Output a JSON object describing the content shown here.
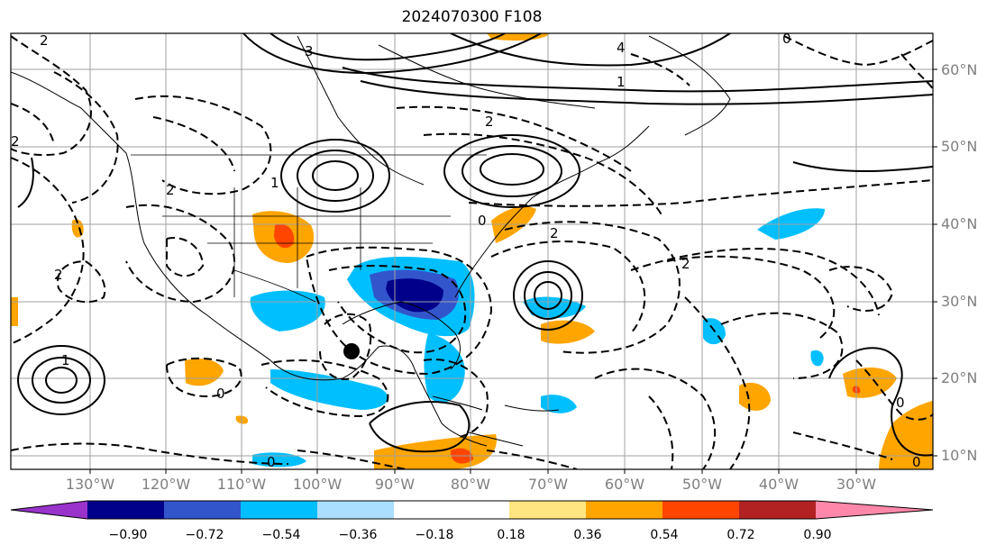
{
  "title": "2024070300 F108",
  "lat_labels": [
    "60°N",
    "50°N",
    "40°N",
    "30°N",
    "20°N",
    "10°N"
  ],
  "lon_labels": [
    "130°W",
    "120°W",
    "110°W",
    "100°W",
    "90°W",
    "80°W",
    "70°W",
    "60°W",
    "50°W",
    "40°W",
    "30°W"
  ],
  "contour_labels": {
    "a": "2",
    "b": "4",
    "c": "3",
    "d": "1",
    "e": "0",
    "f": "2",
    "g": "1",
    "h": "2",
    "i": "0",
    "j": "2",
    "k": "2",
    "l": "1",
    "m": "0",
    "n": "0",
    "o": "2",
    "p": "0",
    "q": "2",
    "r": "0"
  },
  "colorbar": {
    "ticks": [
      "−0.90",
      "−0.72",
      "−0.54",
      "−0.36",
      "−0.18",
      "0.18",
      "0.36",
      "0.54",
      "0.72",
      "0.90"
    ],
    "colors": [
      "#9933cc",
      "#00008b",
      "#3355cc",
      "#00bfff",
      "#aadfff",
      "#ffffff",
      "#ffe680",
      "#ffa500",
      "#ff4500",
      "#b22222",
      "#ff88aa"
    ]
  }
}
